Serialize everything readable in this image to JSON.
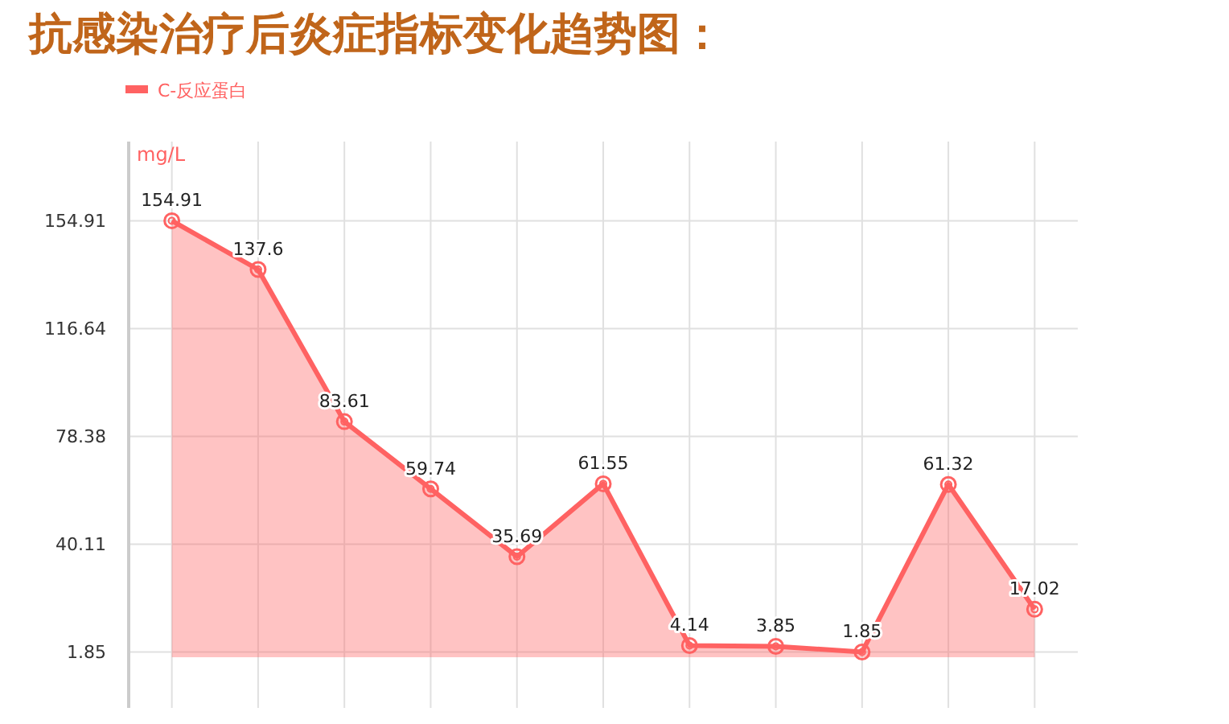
{
  "chart_data": {
    "type": "area",
    "title": "抗感染治疗后炎症指标变化趋势图：",
    "ylabel": "mg/L",
    "categories": [
      null,
      null,
      null,
      null,
      null,
      null,
      null,
      null,
      null,
      null,
      null
    ],
    "series": [
      {
        "name": "C-反应蛋白",
        "color": "#ff6262",
        "values": [
          154.91,
          137.6,
          83.61,
          59.74,
          35.69,
          61.55,
          4.14,
          3.85,
          1.85,
          61.32,
          17.02
        ]
      }
    ],
    "ylim": [
      -18,
      183
    ],
    "yticks": [
      1.85,
      40.11,
      78.38,
      116.64,
      154.91
    ],
    "grid": true,
    "legend": "top left",
    "marker": "circle",
    "data_labels": true
  }
}
